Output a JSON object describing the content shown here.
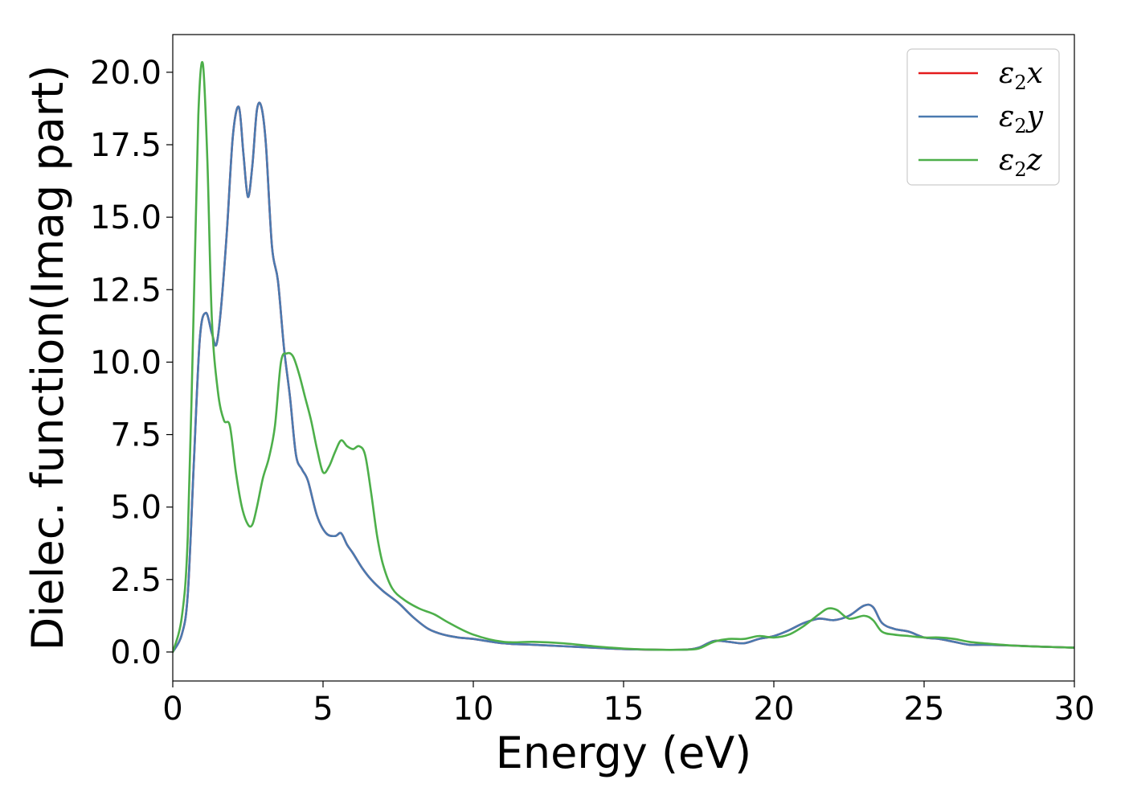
{
  "chart_data": {
    "type": "line",
    "title": "",
    "xlabel": "Energy (eV)",
    "ylabel": "Dielec. function(Imag part)",
    "xlim": [
      0,
      30
    ],
    "ylim": [
      -1,
      21.3
    ],
    "xticks": [
      0,
      5,
      10,
      15,
      20,
      25,
      30
    ],
    "xtick_labels": [
      "0",
      "5",
      "10",
      "15",
      "20",
      "25",
      "30"
    ],
    "yticks": [
      0,
      2.5,
      5,
      7.5,
      10,
      12.5,
      15,
      17.5,
      20
    ],
    "ytick_labels": [
      "0.0",
      "2.5",
      "5.0",
      "7.5",
      "10.0",
      "12.5",
      "15.0",
      "17.5",
      "20.0"
    ],
    "grid": false,
    "legend_position": "top-right",
    "series": [
      {
        "name": "ε₂x",
        "legend_label": {
          "base": "ε",
          "sub": "2",
          "suffix": "x"
        },
        "color": "#e41a1c",
        "x": [
          0,
          0.3,
          0.5,
          0.7,
          0.9,
          1.1,
          1.3,
          1.45,
          1.6,
          1.8,
          2.0,
          2.2,
          2.35,
          2.5,
          2.65,
          2.8,
          2.95,
          3.1,
          3.3,
          3.5,
          3.7,
          3.9,
          4.1,
          4.3,
          4.5,
          4.8,
          5.1,
          5.4,
          5.6,
          5.8,
          6.0,
          6.3,
          6.6,
          7.0,
          7.5,
          8.0,
          8.5,
          9.0,
          9.5,
          10.0,
          11.0,
          12.0,
          13.0,
          14.0,
          15.0,
          16.0,
          17.0,
          17.5,
          18.0,
          18.5,
          19.0,
          19.5,
          20.0,
          20.5,
          21.0,
          21.5,
          22.0,
          22.5,
          23.0,
          23.3,
          23.6,
          24.0,
          24.5,
          25.0,
          25.5,
          26.0,
          26.5,
          27.0,
          28.0,
          29.0,
          30.0
        ],
        "y": [
          0,
          0.6,
          2.0,
          6.5,
          10.8,
          11.7,
          11.0,
          10.6,
          11.8,
          14.5,
          17.8,
          18.8,
          17.2,
          15.7,
          16.8,
          18.7,
          18.8,
          17.5,
          14.0,
          12.8,
          10.5,
          8.8,
          6.8,
          6.3,
          5.9,
          4.7,
          4.1,
          4.0,
          4.1,
          3.7,
          3.4,
          2.9,
          2.5,
          2.1,
          1.7,
          1.2,
          0.8,
          0.6,
          0.5,
          0.45,
          0.3,
          0.25,
          0.2,
          0.15,
          0.1,
          0.08,
          0.08,
          0.15,
          0.38,
          0.35,
          0.3,
          0.45,
          0.55,
          0.75,
          1.0,
          1.15,
          1.1,
          1.25,
          1.6,
          1.55,
          1.0,
          0.8,
          0.7,
          0.5,
          0.45,
          0.35,
          0.25,
          0.25,
          0.22,
          0.18,
          0.15
        ]
      },
      {
        "name": "ε₂y",
        "legend_label": {
          "base": "ε",
          "sub": "2",
          "suffix": "y"
        },
        "color": "#4a7ab0",
        "x": [
          0,
          0.3,
          0.5,
          0.7,
          0.9,
          1.1,
          1.3,
          1.45,
          1.6,
          1.8,
          2.0,
          2.2,
          2.35,
          2.5,
          2.65,
          2.8,
          2.95,
          3.1,
          3.3,
          3.5,
          3.7,
          3.9,
          4.1,
          4.3,
          4.5,
          4.8,
          5.1,
          5.4,
          5.6,
          5.8,
          6.0,
          6.3,
          6.6,
          7.0,
          7.5,
          8.0,
          8.5,
          9.0,
          9.5,
          10.0,
          11.0,
          12.0,
          13.0,
          14.0,
          15.0,
          16.0,
          17.0,
          17.5,
          18.0,
          18.5,
          19.0,
          19.5,
          20.0,
          20.5,
          21.0,
          21.5,
          22.0,
          22.5,
          23.0,
          23.3,
          23.6,
          24.0,
          24.5,
          25.0,
          25.5,
          26.0,
          26.5,
          27.0,
          28.0,
          29.0,
          30.0
        ],
        "y": [
          0,
          0.6,
          2.0,
          6.5,
          10.8,
          11.7,
          11.0,
          10.6,
          11.8,
          14.5,
          17.8,
          18.8,
          17.2,
          15.7,
          16.8,
          18.7,
          18.8,
          17.5,
          14.0,
          12.8,
          10.5,
          8.8,
          6.8,
          6.3,
          5.9,
          4.7,
          4.1,
          4.0,
          4.1,
          3.7,
          3.4,
          2.9,
          2.5,
          2.1,
          1.7,
          1.2,
          0.8,
          0.6,
          0.5,
          0.45,
          0.3,
          0.25,
          0.2,
          0.15,
          0.1,
          0.08,
          0.08,
          0.15,
          0.38,
          0.35,
          0.3,
          0.45,
          0.55,
          0.75,
          1.0,
          1.15,
          1.1,
          1.25,
          1.6,
          1.55,
          1.0,
          0.8,
          0.7,
          0.5,
          0.45,
          0.35,
          0.25,
          0.25,
          0.22,
          0.18,
          0.15
        ]
      },
      {
        "name": "ε₂z",
        "legend_label": {
          "base": "ε",
          "sub": "2",
          "suffix": "z"
        },
        "color": "#4daf4a",
        "x": [
          0,
          0.3,
          0.5,
          0.7,
          0.85,
          1.0,
          1.15,
          1.3,
          1.5,
          1.7,
          1.9,
          2.1,
          2.3,
          2.5,
          2.65,
          2.8,
          3.0,
          3.2,
          3.4,
          3.6,
          3.8,
          4.0,
          4.2,
          4.4,
          4.6,
          4.8,
          5.0,
          5.2,
          5.4,
          5.6,
          5.8,
          6.0,
          6.2,
          6.4,
          6.6,
          6.8,
          7.0,
          7.3,
          7.7,
          8.2,
          8.7,
          9.2,
          10.0,
          11.0,
          12.0,
          13.0,
          14.0,
          15.0,
          16.0,
          17.0,
          17.5,
          18.0,
          18.5,
          19.0,
          19.5,
          20.0,
          20.5,
          21.0,
          21.5,
          21.8,
          22.1,
          22.5,
          23.0,
          23.3,
          23.6,
          24.0,
          24.5,
          25.0,
          25.5,
          26.0,
          26.5,
          27.0,
          28.0,
          29.0,
          30.0
        ],
        "y": [
          0,
          1.2,
          4.0,
          12.0,
          18.5,
          20.3,
          17.0,
          11.5,
          9.0,
          8.0,
          7.8,
          6.2,
          5.0,
          4.4,
          4.4,
          5.0,
          6.0,
          6.7,
          7.8,
          10.0,
          10.3,
          10.2,
          9.6,
          8.8,
          8.0,
          7.0,
          6.2,
          6.4,
          6.9,
          7.3,
          7.1,
          7.0,
          7.1,
          6.8,
          5.5,
          4.0,
          3.0,
          2.2,
          1.8,
          1.5,
          1.3,
          1.0,
          0.6,
          0.35,
          0.35,
          0.3,
          0.2,
          0.12,
          0.08,
          0.08,
          0.12,
          0.35,
          0.45,
          0.45,
          0.55,
          0.5,
          0.6,
          0.9,
          1.3,
          1.5,
          1.45,
          1.15,
          1.25,
          1.1,
          0.7,
          0.6,
          0.55,
          0.5,
          0.5,
          0.45,
          0.35,
          0.3,
          0.22,
          0.18,
          0.15
        ]
      }
    ]
  }
}
